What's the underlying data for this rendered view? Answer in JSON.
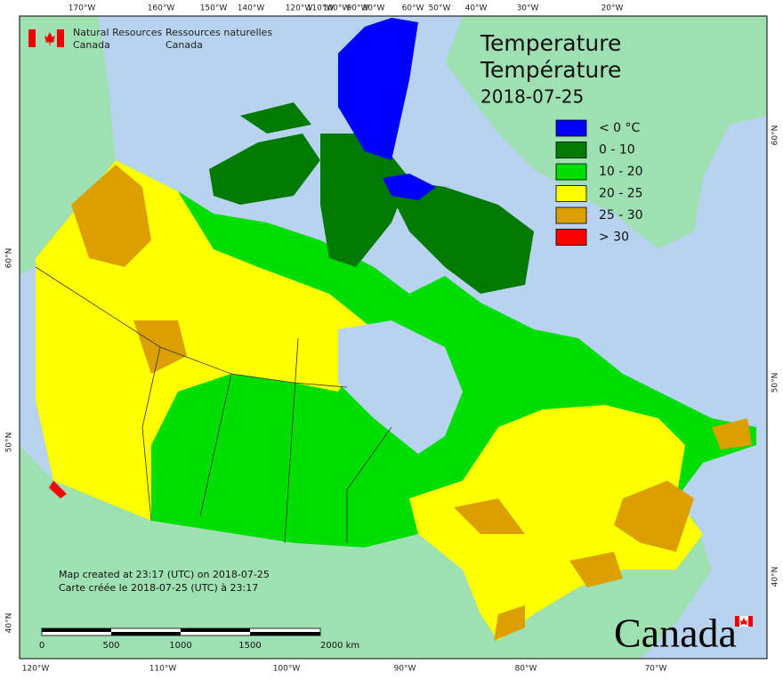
{
  "header": {
    "agency_en": "Natural Resources",
    "agency_en_2": "Canada",
    "agency_fr": "Ressources naturelles",
    "agency_fr_2": "Canada"
  },
  "title": {
    "line_en": "Temperature",
    "line_fr": "Température",
    "date": "2018-07-25"
  },
  "legend": [
    {
      "label": "< 0 °C",
      "color": "#0000ff"
    },
    {
      "label": "0 - 10",
      "color": "#007a00"
    },
    {
      "label": "10 - 20",
      "color": "#00dd00"
    },
    {
      "label": "20 - 25",
      "color": "#ffff00"
    },
    {
      "label": "25 - 30",
      "color": "#dba000"
    },
    {
      "label": "> 30",
      "color": "#ff0000"
    }
  ],
  "credits": [
    "Map created at 23:17 (UTC) on 2018-07-25",
    "Carte créée le 2018-07-25 (UTC) à 23:17"
  ],
  "scale_bar": [
    "0",
    "500",
    "1000",
    "1500",
    "2000 km"
  ],
  "top_labels": [
    "170°W",
    "160°W",
    "150°W",
    "140°W",
    "120°W",
    "110°W",
    "100°W",
    "90°W",
    "80°W",
    "60°W",
    "50°W",
    "40°W",
    "30°W",
    "20°W"
  ],
  "bottom_labels": [
    "120°W",
    "110°W",
    "100°W",
    "90°W",
    "80°W",
    "70°W"
  ],
  "left_labels": [
    "60°N",
    "50°N",
    "40°N"
  ],
  "right_labels": [
    "60°N",
    "50°N",
    "40°N"
  ],
  "wordmark": "Canada"
}
